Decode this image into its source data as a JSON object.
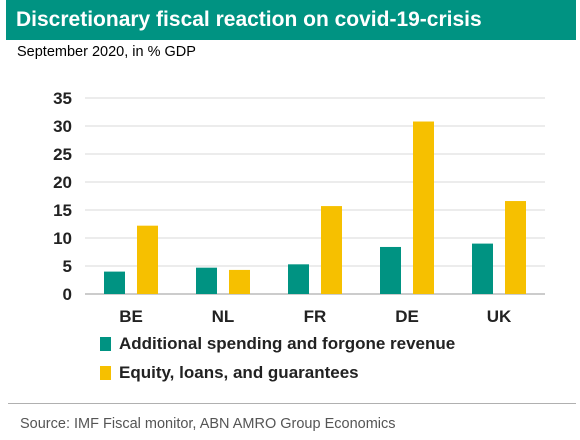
{
  "header": {
    "title": "Discretionary fiscal reaction on covid-19-crisis"
  },
  "subtitle": "September 2020, in % GDP",
  "colors": {
    "title_bg": "#009382",
    "series1": "#009382",
    "series2": "#f6c000"
  },
  "chart_data": {
    "type": "bar",
    "categories": [
      "BE",
      "NL",
      "FR",
      "DE",
      "UK"
    ],
    "series": [
      {
        "name": "Additional spending and forgone revenue",
        "values": [
          4.0,
          4.7,
          5.3,
          8.4,
          9.0
        ]
      },
      {
        "name": "Equity, loans, and guarantees",
        "values": [
          12.2,
          4.3,
          15.7,
          30.8,
          16.6
        ]
      }
    ],
    "ylim": [
      0,
      35
    ],
    "yticks": [
      "0",
      "5",
      "10",
      "15",
      "20",
      "25",
      "30",
      "35"
    ],
    "grid": true,
    "legend_position": "bottom"
  },
  "source": "Source: IMF Fiscal monitor, ABN AMRO Group Economics"
}
